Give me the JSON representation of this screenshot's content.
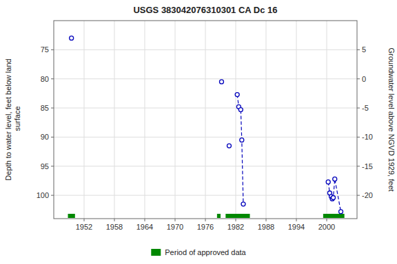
{
  "chart_data": {
    "type": "scatter",
    "title": "USGS 383042076310301 CA Dc  16",
    "y_label": "Depth to water level, feet below land\n surface",
    "y2_label": "Groundwater level above NGVD 1929, feet",
    "xlim": [
      1946,
      2006
    ],
    "xticks": [
      1952,
      1958,
      1964,
      1970,
      1976,
      1982,
      1988,
      1994,
      2000
    ],
    "ylim": [
      104,
      70
    ],
    "yticks": [
      75,
      80,
      85,
      90,
      95,
      100
    ],
    "y2lim": [
      -24,
      10
    ],
    "y2ticks": [
      5,
      0,
      -5,
      -10,
      -15,
      -20
    ],
    "grid": true,
    "legend": "bottom",
    "series": [
      {
        "type": "scatter",
        "color": "#0000bb",
        "marker": "circle",
        "x": [
          1949.5,
          1979.2,
          1980.7,
          1982.3,
          1982.6,
          1983.0,
          1983.2,
          1983.5,
          2000.3,
          2000.6,
          2000.9,
          2001.1,
          2001.3,
          2001.6,
          2002.8
        ],
        "values": [
          73.0,
          80.5,
          91.5,
          82.7,
          84.8,
          85.3,
          90.5,
          101.5,
          97.7,
          99.6,
          100.2,
          100.6,
          100.4,
          97.2,
          102.8
        ]
      },
      {
        "type": "line",
        "color": "#0000bb",
        "line_style": "dashed",
        "x": [
          1982.3,
          1982.6,
          1983.0,
          1983.2,
          1983.5
        ],
        "values": [
          82.7,
          84.8,
          85.3,
          90.5,
          101.5
        ]
      },
      {
        "type": "line",
        "color": "#0000bb",
        "line_style": "dashed",
        "x": [
          2000.3,
          2000.6,
          2000.9,
          2001.1,
          2001.3,
          2001.6,
          2002.8
        ],
        "values": [
          97.7,
          99.6,
          100.2,
          100.6,
          100.4,
          97.2,
          102.8
        ]
      },
      {
        "type": "range",
        "name": "Period of approved data",
        "color": "#008800",
        "starts": [
          1948.8,
          1978.3,
          1980.0,
          1999.3
        ],
        "ends": [
          1950.2,
          1979.0,
          1984.8,
          2003.5
        ]
      }
    ]
  }
}
